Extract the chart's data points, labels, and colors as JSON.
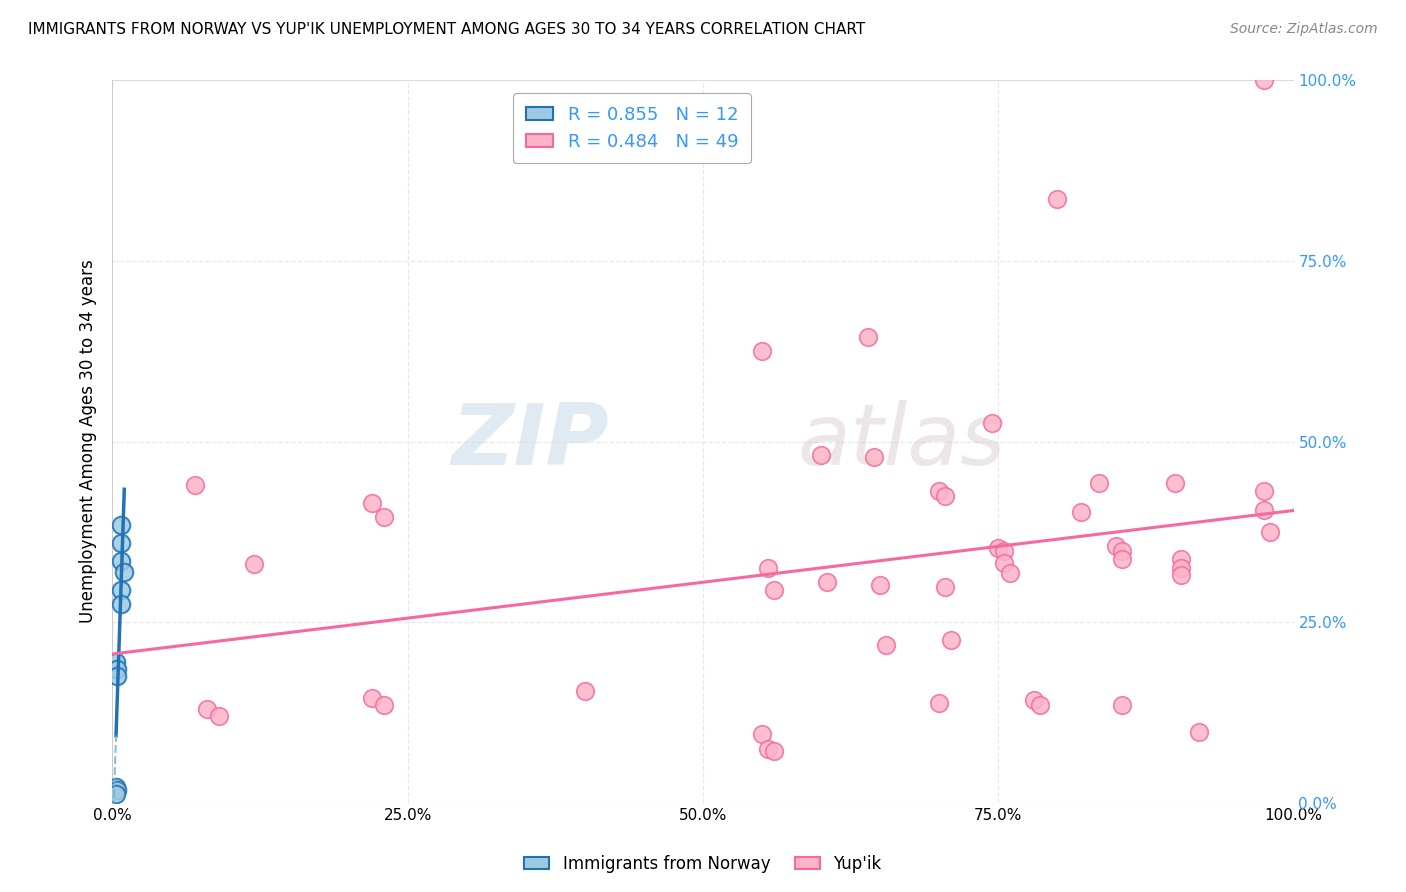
{
  "title": "IMMIGRANTS FROM NORWAY VS YUP'IK UNEMPLOYMENT AMONG AGES 30 TO 34 YEARS CORRELATION CHART",
  "source": "Source: ZipAtlas.com",
  "ylabel": "Unemployment Among Ages 30 to 34 years",
  "x_tick_labels": [
    "0.0%",
    "25.0%",
    "50.0%",
    "75.0%",
    "100.0%"
  ],
  "y_tick_labels_right": [
    "0.0%",
    "25.0%",
    "50.0%",
    "75.0%",
    "100.0%"
  ],
  "xlim": [
    0,
    1
  ],
  "ylim": [
    0,
    1
  ],
  "legend_entries": [
    {
      "label": "R = 0.855   N = 12",
      "color": "#9ecae1"
    },
    {
      "label": "R = 0.484   N = 49",
      "color": "#fbb4c6"
    }
  ],
  "norway_scatter": [
    [
      0.007,
      0.385
    ],
    [
      0.007,
      0.36
    ],
    [
      0.007,
      0.335
    ],
    [
      0.01,
      0.32
    ],
    [
      0.007,
      0.295
    ],
    [
      0.007,
      0.275
    ],
    [
      0.003,
      0.195
    ],
    [
      0.004,
      0.185
    ],
    [
      0.004,
      0.175
    ],
    [
      0.003,
      0.022
    ],
    [
      0.004,
      0.018
    ],
    [
      0.003,
      0.012
    ]
  ],
  "yupik_scatter": [
    [
      0.07,
      0.44
    ],
    [
      0.12,
      0.33
    ],
    [
      0.08,
      0.13
    ],
    [
      0.09,
      0.12
    ],
    [
      0.22,
      0.415
    ],
    [
      0.23,
      0.395
    ],
    [
      0.22,
      0.145
    ],
    [
      0.23,
      0.135
    ],
    [
      0.4,
      0.155
    ],
    [
      0.55,
      0.625
    ],
    [
      0.555,
      0.325
    ],
    [
      0.56,
      0.295
    ],
    [
      0.55,
      0.095
    ],
    [
      0.555,
      0.075
    ],
    [
      0.56,
      0.072
    ],
    [
      0.6,
      0.482
    ],
    [
      0.605,
      0.305
    ],
    [
      0.64,
      0.645
    ],
    [
      0.645,
      0.478
    ],
    [
      0.65,
      0.302
    ],
    [
      0.655,
      0.218
    ],
    [
      0.7,
      0.432
    ],
    [
      0.705,
      0.425
    ],
    [
      0.705,
      0.298
    ],
    [
      0.71,
      0.225
    ],
    [
      0.7,
      0.138
    ],
    [
      0.745,
      0.525
    ],
    [
      0.75,
      0.352
    ],
    [
      0.755,
      0.348
    ],
    [
      0.755,
      0.332
    ],
    [
      0.76,
      0.318
    ],
    [
      0.78,
      0.142
    ],
    [
      0.785,
      0.135
    ],
    [
      0.8,
      0.835
    ],
    [
      0.82,
      0.402
    ],
    [
      0.835,
      0.442
    ],
    [
      0.85,
      0.355
    ],
    [
      0.855,
      0.348
    ],
    [
      0.855,
      0.338
    ],
    [
      0.855,
      0.135
    ],
    [
      0.9,
      0.442
    ],
    [
      0.905,
      0.338
    ],
    [
      0.905,
      0.325
    ],
    [
      0.905,
      0.315
    ],
    [
      0.92,
      0.098
    ],
    [
      0.975,
      0.432
    ],
    [
      0.975,
      0.405
    ],
    [
      0.975,
      1.0
    ],
    [
      0.98,
      0.375
    ]
  ],
  "norway_line_color": "#2171b5",
  "yupik_line_color": "#f768a1",
  "norway_scatter_color": "#9ecae1",
  "yupik_scatter_color": "#fbb4c6",
  "norway_dashed_color": "#6baed6",
  "grid_color": "#e8e8e8",
  "grid_style_major": "-",
  "grid_style_minor": "--",
  "watermark_zip": "ZIP",
  "watermark_atlas": "atlas"
}
